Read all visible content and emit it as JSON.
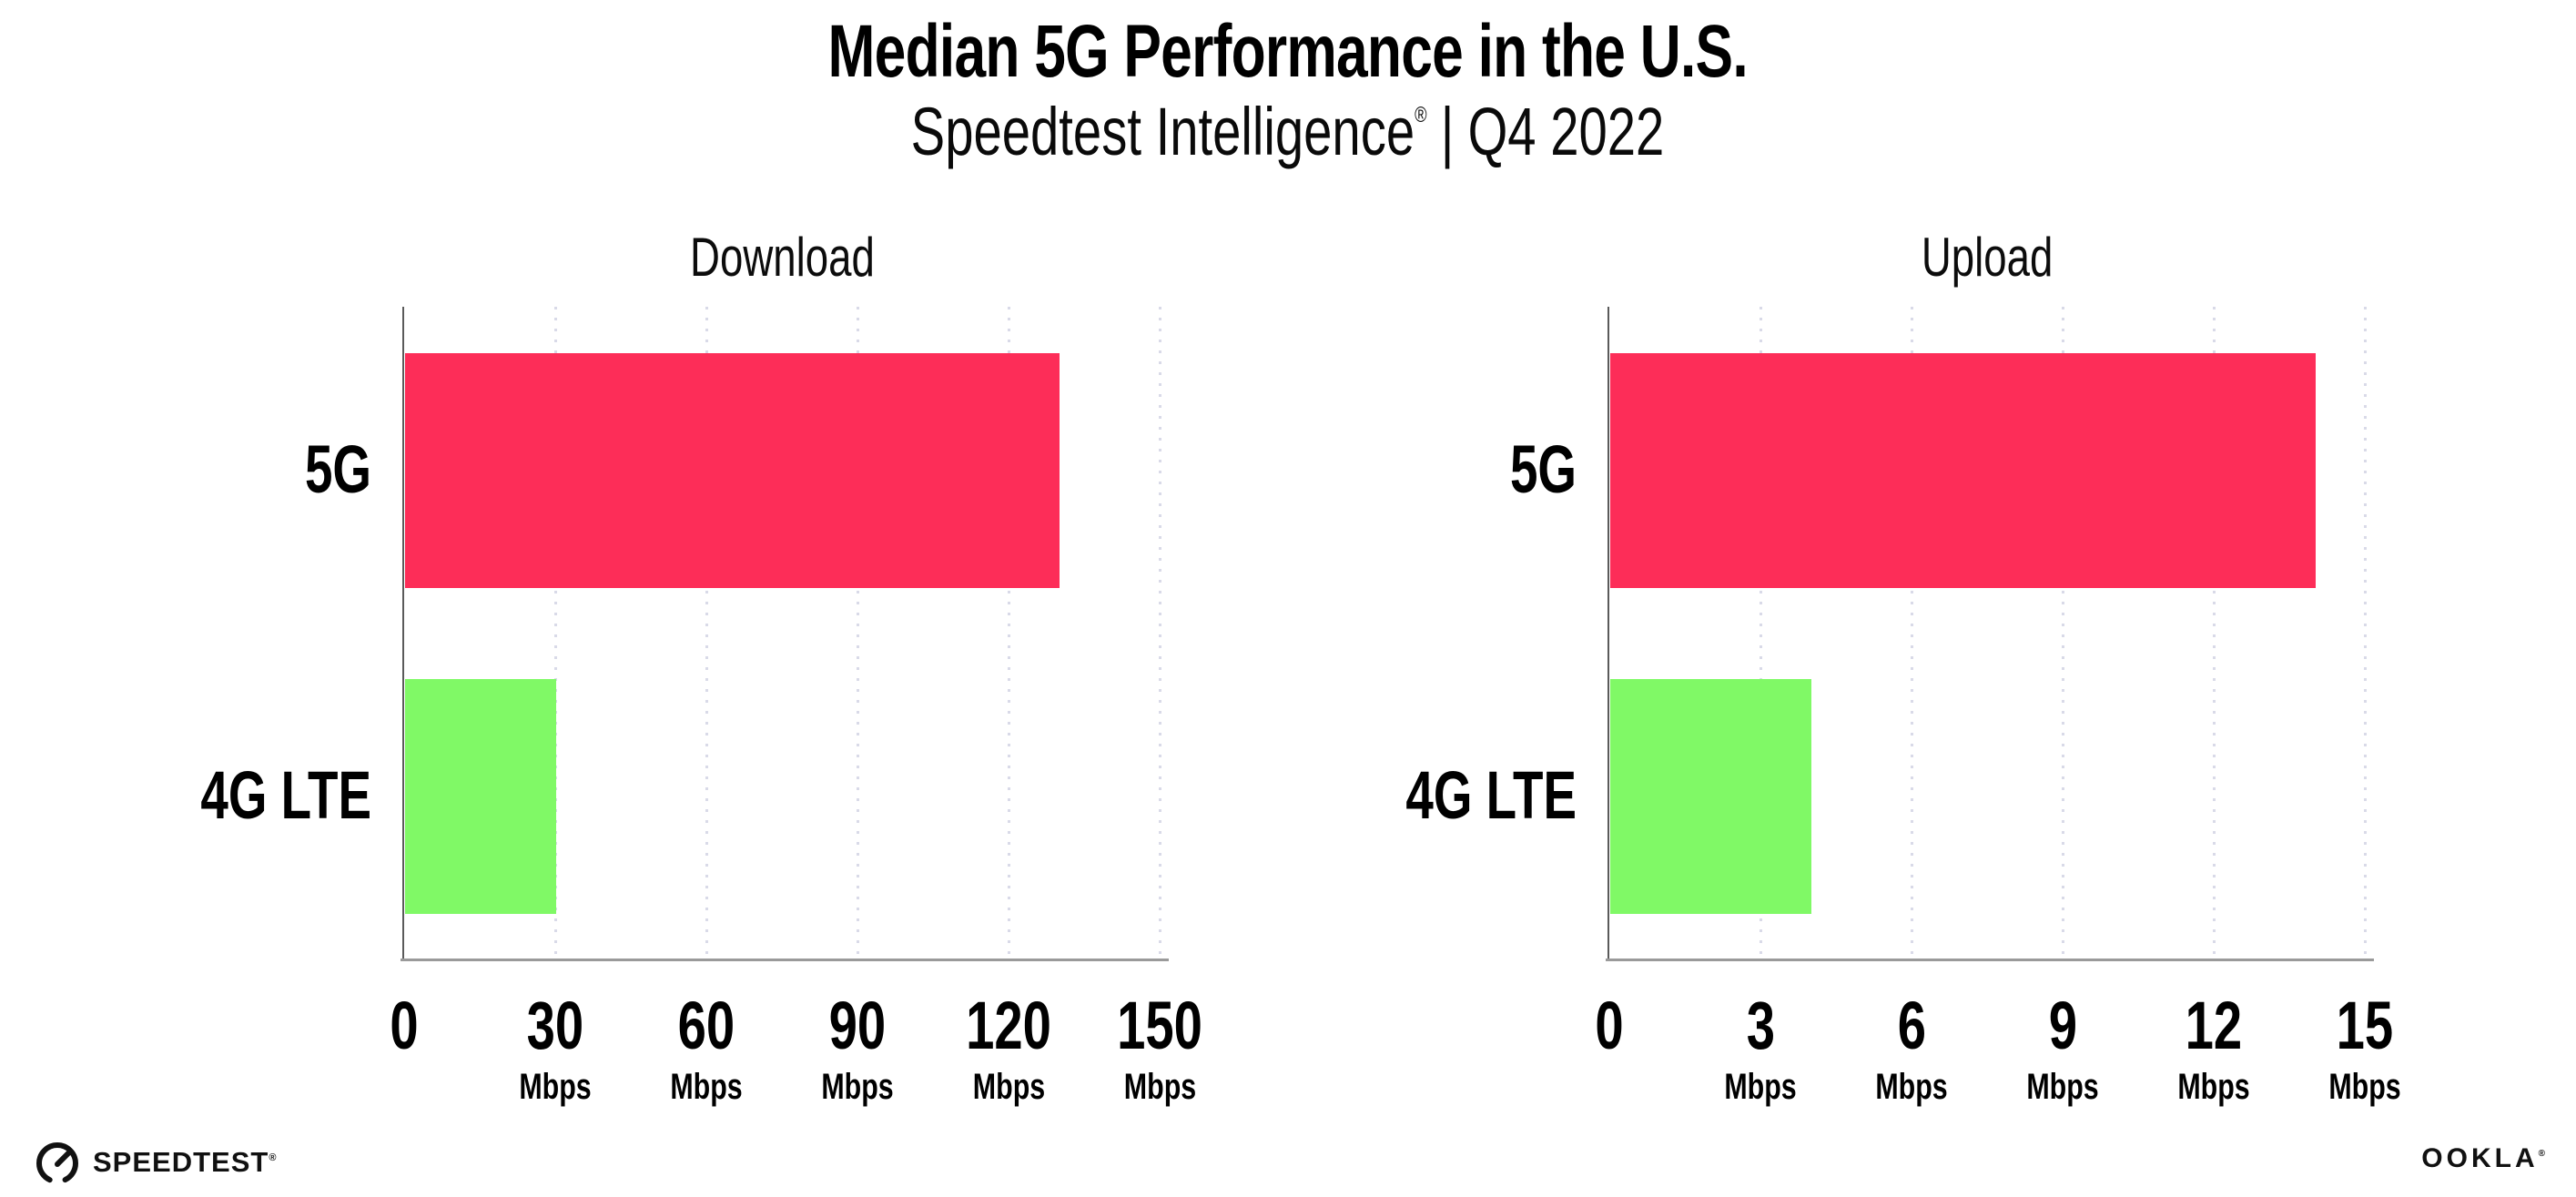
{
  "header": {
    "title": "Median 5G Performance in the U.S.",
    "subtitle_brand": "Speedtest Intelligence",
    "subtitle_reg": "®",
    "subtitle_separator": "|",
    "subtitle_period": "Q4 2022"
  },
  "chart_data": [
    {
      "type": "bar",
      "orientation": "horizontal",
      "title": "Download",
      "categories": [
        "5G",
        "4G LTE"
      ],
      "values": [
        130,
        30
      ],
      "unit": "Mbps",
      "xlim": [
        0,
        150
      ],
      "xticks": [
        0,
        30,
        60,
        90,
        120,
        150
      ],
      "bar_colors": [
        "#fd2d58",
        "#80f966"
      ],
      "grid": "vertical-dotted",
      "legend": "none"
    },
    {
      "type": "bar",
      "orientation": "horizontal",
      "title": "Upload",
      "categories": [
        "5G",
        "4G LTE"
      ],
      "values": [
        14,
        4
      ],
      "unit": "Mbps",
      "xlim": [
        0,
        15
      ],
      "xticks": [
        0,
        3,
        6,
        9,
        12,
        15
      ],
      "bar_colors": [
        "#fd2d58",
        "#80f966"
      ],
      "grid": "vertical-dotted",
      "legend": "none"
    }
  ],
  "colors": {
    "bar_5g": "#fd2d58",
    "bar_4g_lte": "#80f966",
    "gridline_dots": "#d9dae8",
    "x_axis": "#9a9a9a",
    "y_axis": "#5a5a5a",
    "text": "#000000"
  },
  "footer": {
    "speedtest_label": "SPEEDTEST",
    "speedtest_mark": "®",
    "ookla_label": "OOKLA",
    "ookla_mark": "®"
  }
}
